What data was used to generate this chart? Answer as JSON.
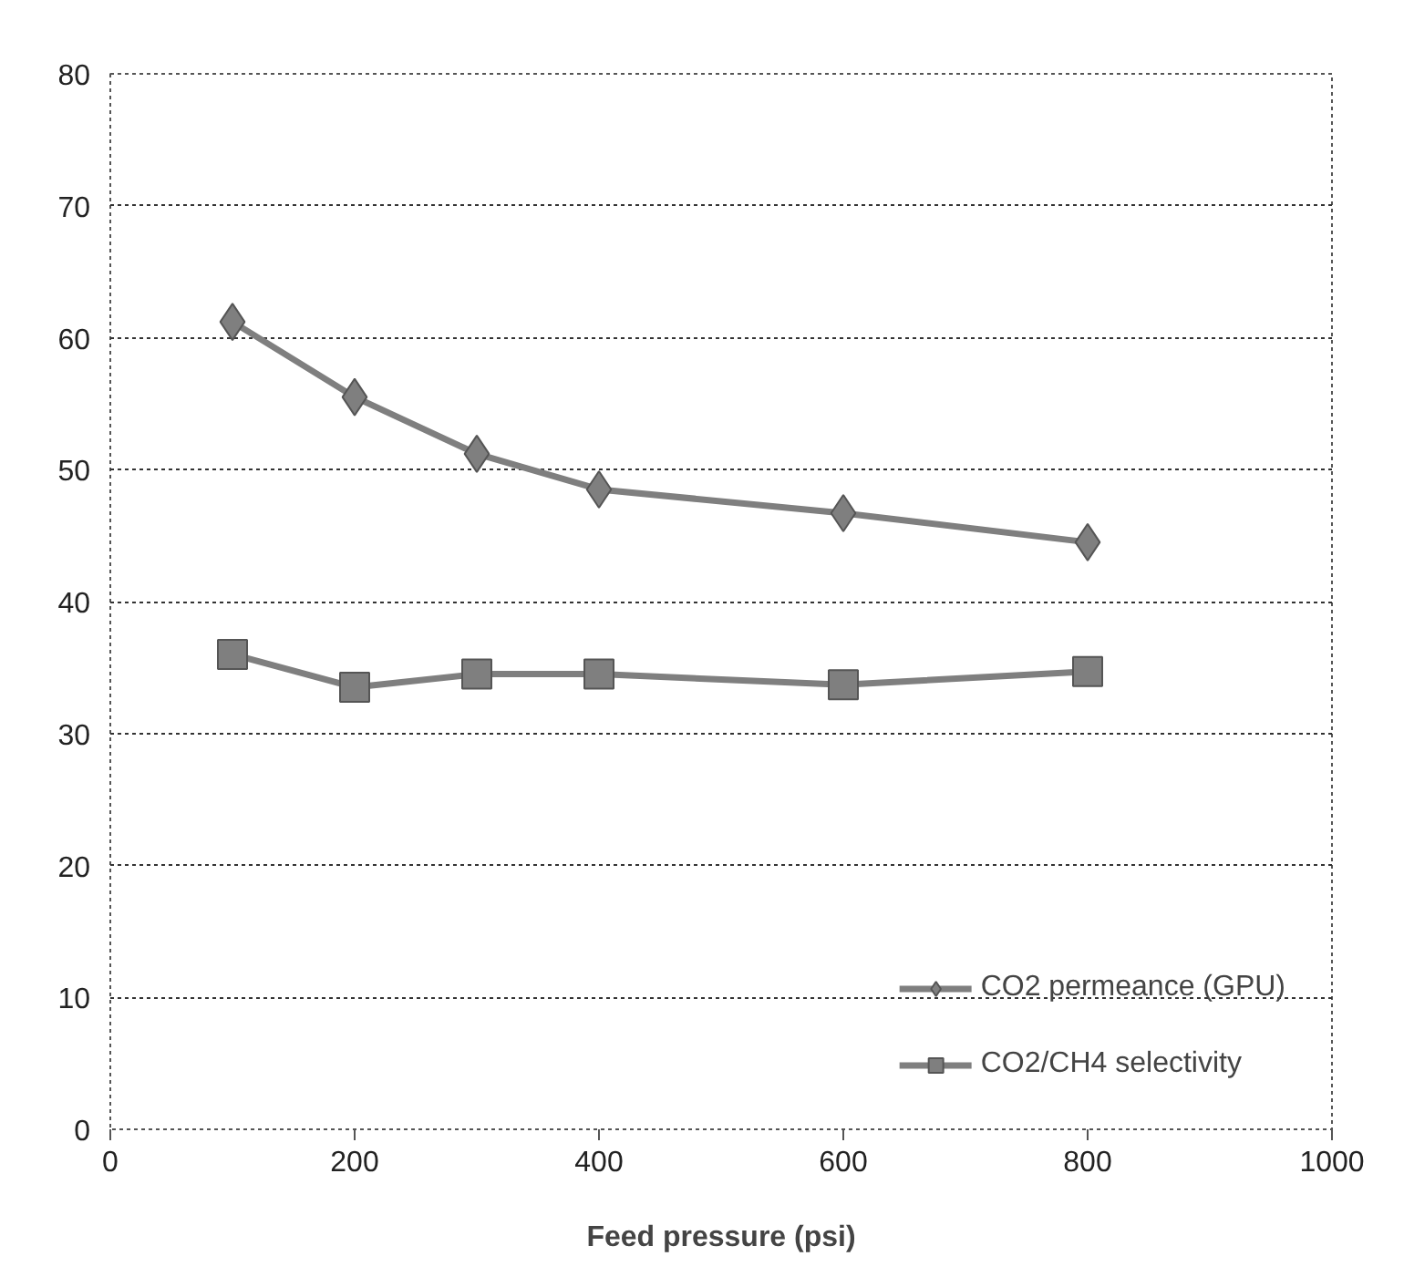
{
  "chart_data": {
    "type": "line",
    "xlabel": "Feed pressure (psi)",
    "x": [
      100,
      200,
      300,
      400,
      600,
      800
    ],
    "series": [
      {
        "name": "CO2 permeance (GPU)",
        "color": "#7f7f7f",
        "marker": "diamond",
        "values": [
          61.2,
          55.5,
          51.2,
          48.5,
          46.7,
          44.5
        ]
      },
      {
        "name": "CO2/CH4 selectivity",
        "color": "#7f7f7f",
        "marker": "square",
        "values": [
          36,
          33.5,
          34.5,
          34.5,
          33.7,
          34.7
        ]
      }
    ],
    "xlim": [
      0,
      1000
    ],
    "xticks": [
      0,
      200,
      400,
      600,
      800,
      1000
    ],
    "ylim": [
      0,
      80
    ],
    "yticks": [
      0,
      10,
      20,
      30,
      40,
      50,
      60,
      70,
      80
    ],
    "grid": "y",
    "legend": "bottom right",
    "line_style": "solid"
  }
}
